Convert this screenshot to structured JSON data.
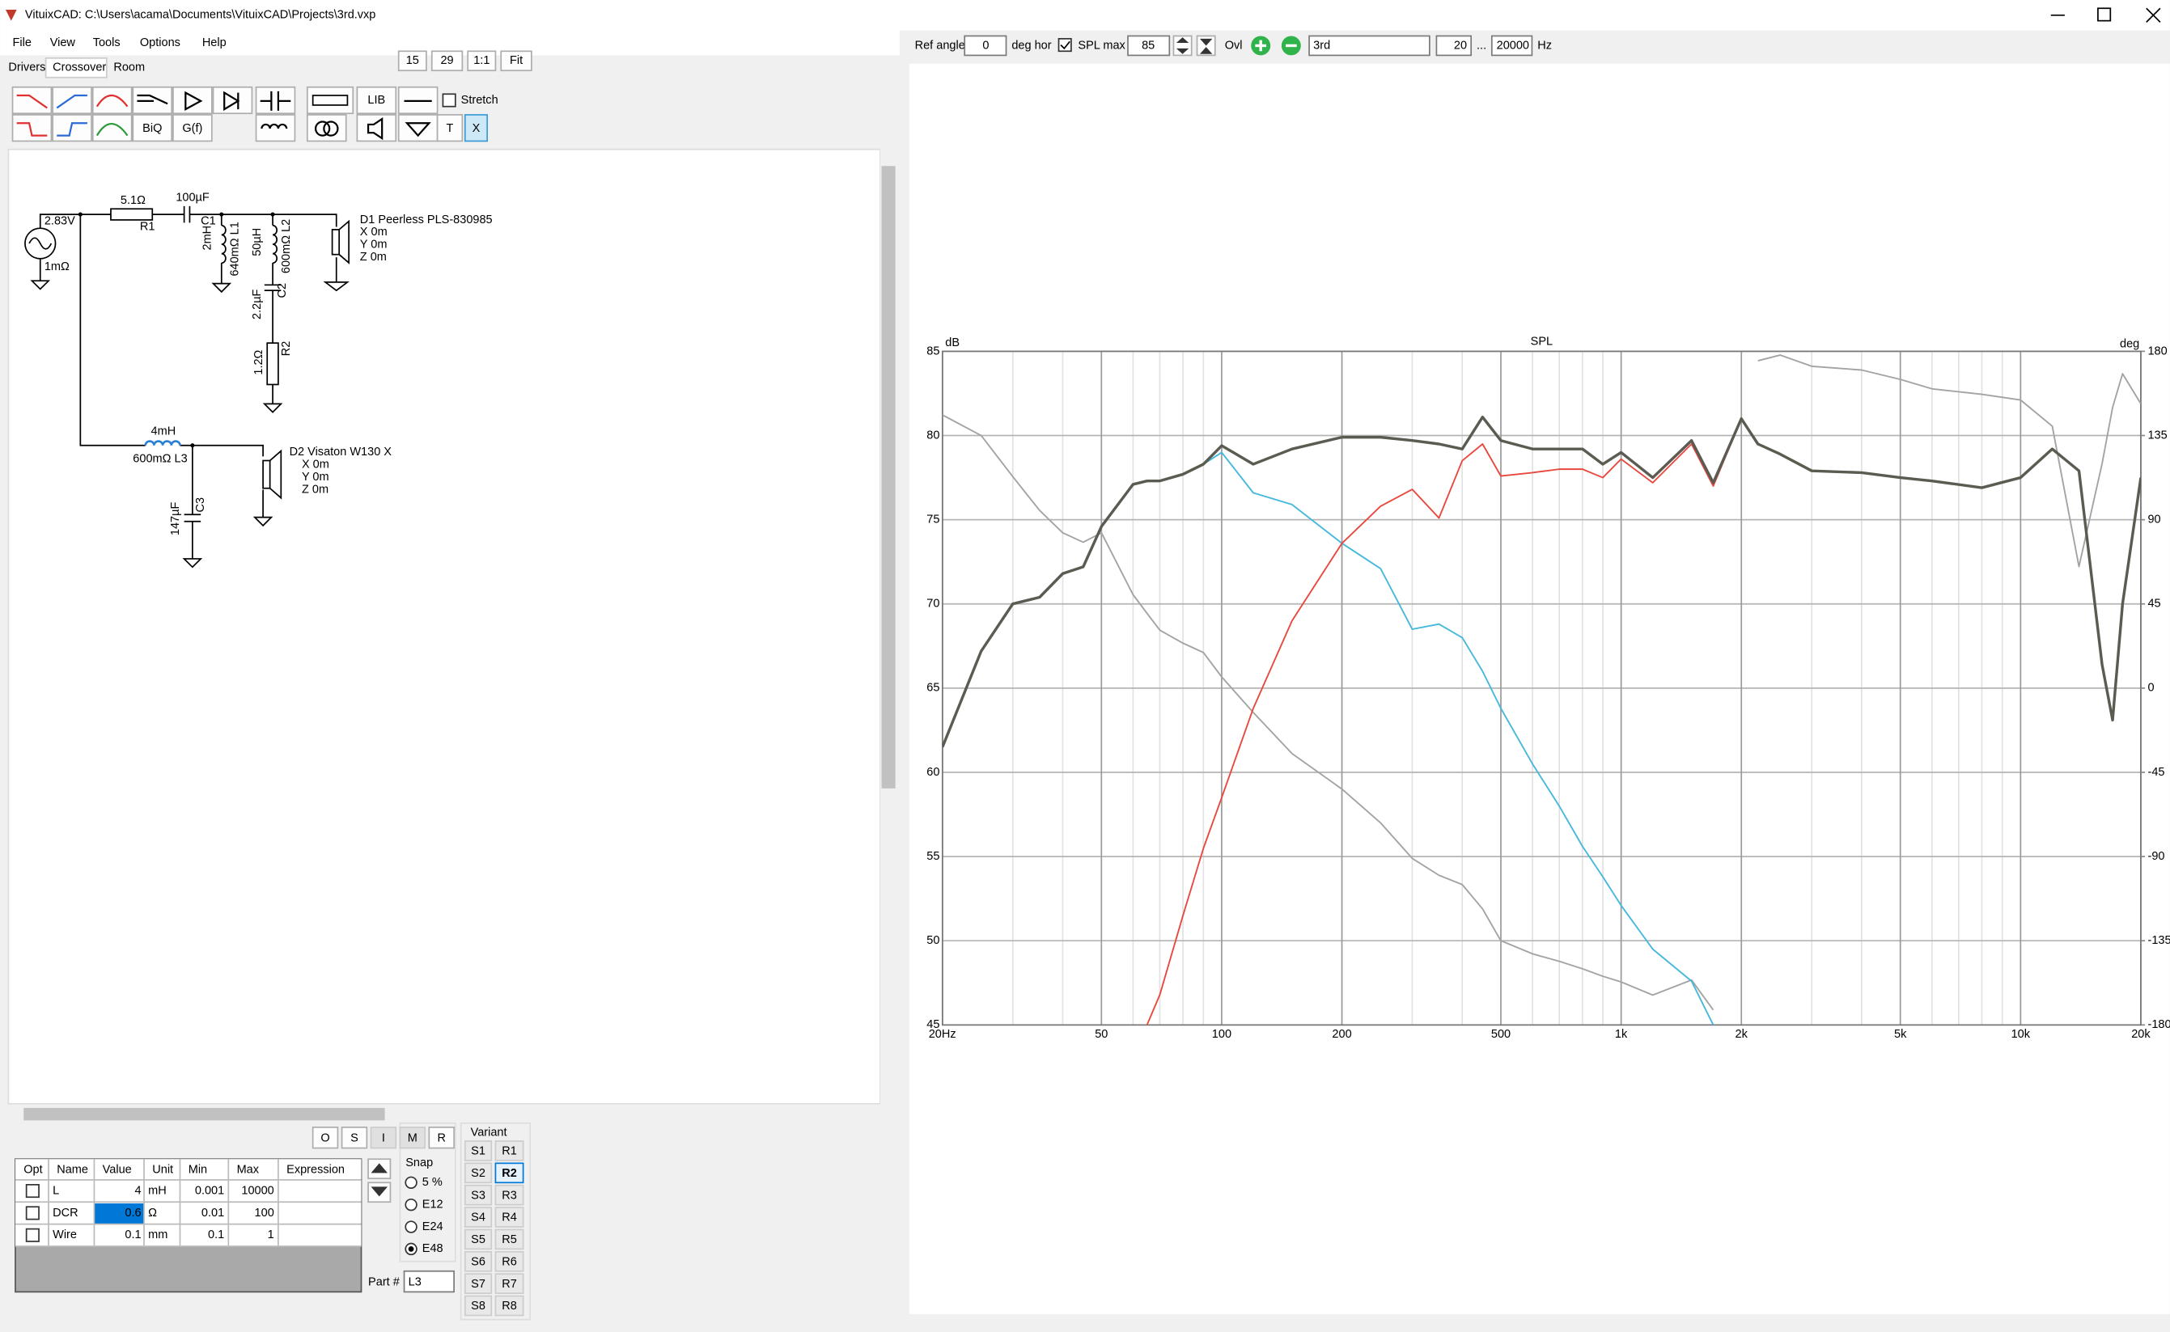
{
  "window": {
    "title": "VituixCAD: C:\\Users\\acama\\Documents\\VituixCAD\\Projects\\3rd.vxp"
  },
  "menu": [
    "File",
    "View",
    "Tools",
    "Options",
    "Help"
  ],
  "tabs": [
    "Drivers",
    "Crossover",
    "Room"
  ],
  "zoom_buttons": [
    "15",
    "29",
    "1:1",
    "Fit"
  ],
  "toolbar": {
    "lib": "LIB",
    "stretch": "Stretch",
    "biq": "BiQ",
    "gf": "G(f)",
    "t": "T",
    "x": "X"
  },
  "schematic": [
    "2.83V",
    "1mΩ",
    "5.1Ω",
    "R1",
    "100µF",
    "C1",
    "2mH",
    "640mΩ L1",
    "50µH",
    "600mΩ L2",
    "2.2µF",
    "C2",
    "1.2Ω",
    "R2",
    "D1 Peerless PLS-830985",
    "X 0m",
    "Y 0m",
    "Z 0m",
    "4mH",
    "600mΩ L3",
    "D2 Visaton W130 X",
    "X 0m",
    "Y 0m",
    "Z 0m",
    "147µF",
    "C3"
  ],
  "part_buttons": [
    "O",
    "S",
    "I",
    "M",
    "R"
  ],
  "table": {
    "headers": [
      "Opt",
      "Name",
      "Value",
      "Unit",
      "Min",
      "Max",
      "Expression"
    ],
    "rows": [
      {
        "name": "L",
        "value": "4",
        "unit": "mH",
        "min": "0.001",
        "max": "10000"
      },
      {
        "name": "DCR",
        "value": "0.6",
        "unit": "Ω",
        "min": "0.01",
        "max": "100"
      },
      {
        "name": "Wire",
        "value": "0.1",
        "unit": "mm",
        "min": "0.1",
        "max": "1"
      }
    ]
  },
  "snap": {
    "title": "Snap",
    "options": [
      "5 %",
      "E12",
      "E24",
      "E48"
    ]
  },
  "part": {
    "label": "Part #",
    "value": "L3"
  },
  "variant": {
    "title": "Variant",
    "s": [
      "S1",
      "S2",
      "S3",
      "S4",
      "S5",
      "S6",
      "S7",
      "S8"
    ],
    "r": [
      "R1",
      "R2",
      "R3",
      "R4",
      "R5",
      "R6",
      "R7",
      "R8"
    ]
  },
  "right_toolbar": {
    "ref_angle_label": "Ref angle",
    "ref_angle": "0",
    "deg_hor": "deg hor",
    "spl_max_label": "SPL max",
    "spl_max": "85",
    "ovl": "Ovl",
    "name": "3rd",
    "f_min": "20",
    "dots": "...",
    "f_max": "20000",
    "hz": "Hz"
  },
  "chart": {
    "type": "line",
    "title": "SPL",
    "y_label": "dB",
    "y2_label": "deg",
    "x_log": true,
    "grid": true,
    "x": [
      20,
      25,
      30,
      35,
      40,
      45,
      50,
      60,
      65,
      70,
      80,
      90,
      100,
      120,
      150,
      200,
      250,
      300,
      350,
      400,
      450,
      500,
      600,
      700,
      800,
      900,
      1000,
      1200,
      1500,
      1700,
      2000,
      2200,
      2500,
      3000,
      4000,
      5000,
      6000,
      8000,
      10000,
      12000,
      14000,
      16000,
      17000,
      18000,
      20000
    ],
    "series": [
      {
        "color": "#a3a3a3",
        "axis": "y2",
        "values": [
          146,
          135,
          113,
          95,
          83,
          78,
          83,
          50,
          40,
          31,
          24,
          19,
          6,
          -13,
          -35,
          -54,
          -72,
          -91,
          -100,
          -105,
          -118,
          -135,
          -142,
          -146,
          -150,
          -154,
          -157,
          -164,
          -156,
          -172,
          null,
          175,
          178,
          172,
          170,
          165,
          160,
          157,
          154,
          140,
          65,
          120,
          150,
          168,
          152
        ]
      },
      {
        "color": "#45b8dc",
        "values": [
          61.5,
          67.2,
          70,
          70.4,
          71.8,
          72.2,
          74.6,
          77.1,
          77.3,
          77.3,
          77.7,
          78.3,
          79,
          76.6,
          75.9,
          73.6,
          72.1,
          68.5,
          68.8,
          68,
          66,
          63.8,
          60.5,
          58,
          55.6,
          53.8,
          52.1,
          49.5,
          47.6,
          45,
          null,
          null,
          null,
          null,
          null,
          null,
          null,
          null,
          null,
          null,
          null,
          null,
          null,
          null,
          null
        ]
      },
      {
        "color": "#e8483e",
        "values": [
          null,
          null,
          null,
          null,
          null,
          null,
          null,
          null,
          45,
          46.8,
          51.5,
          55.5,
          58.5,
          63.8,
          69,
          73.6,
          75.8,
          76.8,
          75.1,
          78.5,
          79.5,
          77.6,
          77.8,
          78,
          78,
          77.5,
          78.6,
          77.2,
          79.5,
          77,
          81,
          79.5,
          78.9,
          77.9,
          77.8,
          77.5,
          77.3,
          76.9,
          77.5,
          79.2,
          77.9,
          66.4,
          63.1,
          70,
          77.5
        ]
      },
      {
        "color": "#5b5b52",
        "values": [
          61.5,
          67.2,
          70,
          70.4,
          71.8,
          72.2,
          74.6,
          77.1,
          77.3,
          77.3,
          77.7,
          78.3,
          79.4,
          78.3,
          79.2,
          79.9,
          79.9,
          79.7,
          79.5,
          79.2,
          81.1,
          79.7,
          79.2,
          79.2,
          79.2,
          78.3,
          79,
          77.5,
          79.7,
          77.2,
          81,
          79.5,
          78.9,
          77.9,
          77.8,
          77.5,
          77.3,
          76.9,
          77.5,
          79.2,
          77.9,
          66.4,
          63.1,
          70,
          77.5
        ]
      }
    ],
    "xlim": [
      20,
      20000
    ],
    "ylim": [
      45,
      85
    ],
    "y2lim": [
      -180,
      180
    ],
    "xticks": [
      {
        "value": 20,
        "label": "20Hz"
      },
      50,
      100,
      200,
      500,
      {
        "value": 1000,
        "label": "1k"
      },
      {
        "value": 2000,
        "label": "2k"
      },
      {
        "value": 5000,
        "label": "5k"
      },
      {
        "value": 10000,
        "label": "10k"
      },
      {
        "value": 20000,
        "label": "20k"
      }
    ],
    "x_minor_grid": [
      30,
      40,
      60,
      70,
      80,
      90,
      300,
      400,
      600,
      700,
      800,
      900,
      3000,
      4000,
      6000,
      7000,
      8000,
      9000
    ],
    "yticks": [
      85,
      80,
      75,
      70,
      65,
      60,
      55,
      50,
      45
    ],
    "y2ticks": [
      180,
      135,
      90,
      45,
      0,
      -45,
      -90,
      -135,
      -180
    ]
  }
}
